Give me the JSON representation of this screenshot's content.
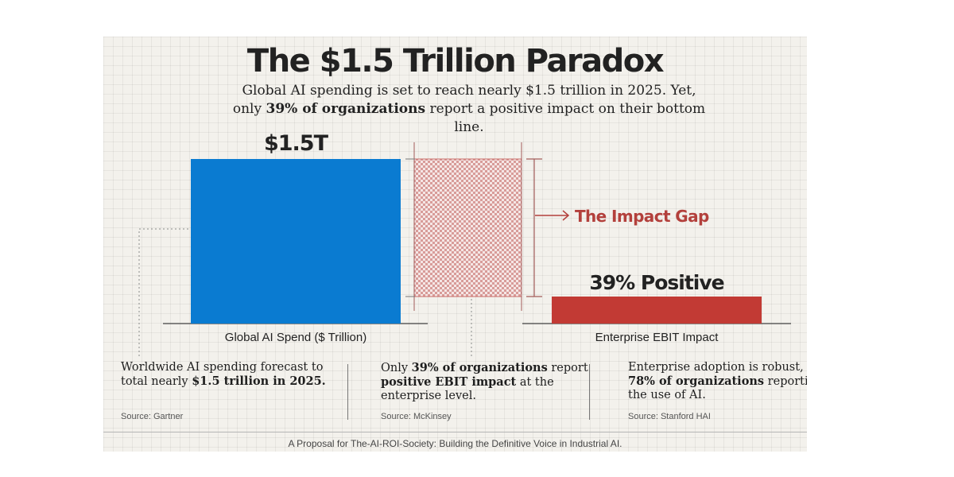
{
  "title": "The $1.5 Trillion Paradox",
  "subtitle": {
    "part1": "Global AI spending is set to reach nearly $1.5 trillion in 2025. Yet, only ",
    "bold": "39% of organizations",
    "part2": " report a positive impact on their bottom line."
  },
  "chart_data": {
    "type": "bar",
    "title": "The $1.5 Trillion Paradox",
    "categories": [
      "Global AI Spend ($ Trillion)",
      "Enterprise EBIT Impact"
    ],
    "values": [
      1.5,
      0.39
    ],
    "value_units": [
      "trillion USD",
      "share of organizations"
    ],
    "data_labels": [
      "$1.5T",
      "39% Positive"
    ],
    "annotations": [
      {
        "text": "The Impact Gap",
        "target": "difference between spend and positive impact"
      }
    ],
    "colors": {
      "spend": "#0a7bd1",
      "impact": "#c23a34",
      "gap": "#c96a66"
    },
    "normalized_scale": [
      0,
      1
    ],
    "xlabel": "",
    "ylabel": ""
  },
  "notes": [
    {
      "segments": [
        {
          "text": "Worldwide AI spending forecast to total nearly ",
          "bold": false
        },
        {
          "text": "$1.5 trillion in 2025.",
          "bold": true
        }
      ],
      "source": "Source: Gartner"
    },
    {
      "segments": [
        {
          "text": "Only ",
          "bold": false
        },
        {
          "text": "39% of organizations",
          "bold": true
        },
        {
          "text": " report ",
          "bold": false
        },
        {
          "text": "positive EBIT impact",
          "bold": true
        },
        {
          "text": " at the enterprise level.",
          "bold": false
        }
      ],
      "source": "Source: McKinsey"
    },
    {
      "segments": [
        {
          "text": "Enterprise adoption is robust, with ",
          "bold": false
        },
        {
          "text": "78% of organizations",
          "bold": true
        },
        {
          "text": " reporting the use of AI.",
          "bold": false
        }
      ],
      "source": "Source: Stanford HAI"
    }
  ],
  "footer": "A Proposal for The-AI-ROI-Society: Building the Definitive Voice in Industrial AI."
}
